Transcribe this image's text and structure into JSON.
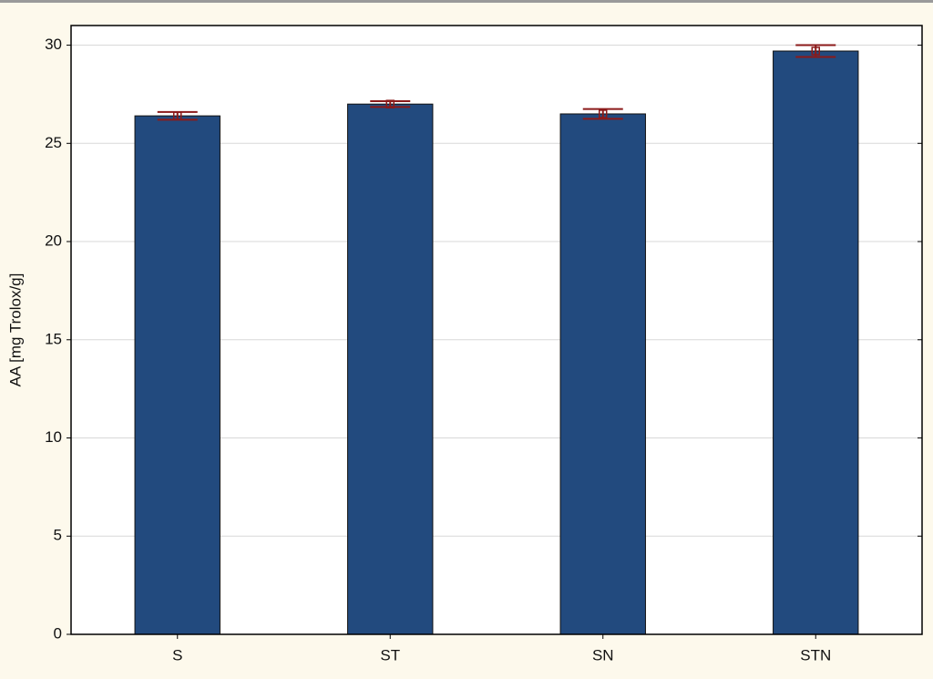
{
  "chart_data": {
    "type": "bar",
    "y_label": "AA [mg Trolox/g]",
    "categories": [
      "S",
      "ST",
      "SN",
      "STN"
    ],
    "values": [
      26.4,
      27.0,
      26.5,
      29.7
    ],
    "errors": [
      0.2,
      0.15,
      0.25,
      0.3
    ],
    "color": "#224a7e",
    "error_color": "#8b1a1a",
    "ylim": [
      0,
      31
    ],
    "yticks": [
      0,
      5,
      10,
      15,
      20,
      25,
      30
    ],
    "grid": true
  }
}
